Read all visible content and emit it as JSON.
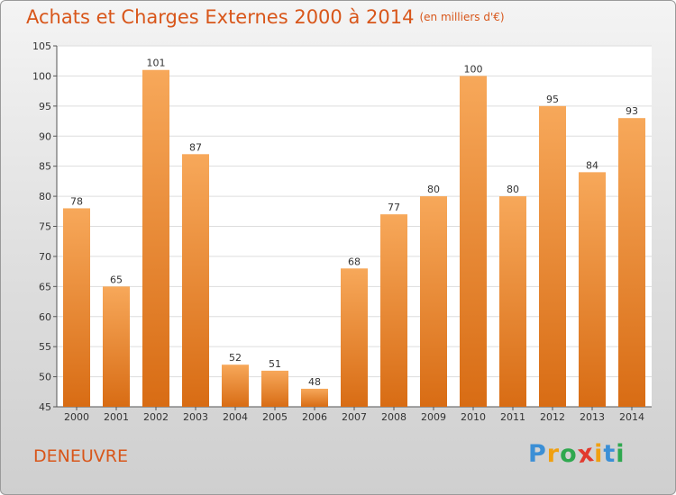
{
  "chart_data": {
    "type": "bar",
    "title": "Achats et Charges Externes 2000 à 2014",
    "unit_label": "(en milliers d'€)",
    "categories": [
      "2000",
      "2001",
      "2002",
      "2003",
      "2004",
      "2005",
      "2006",
      "2007",
      "2008",
      "2009",
      "2010",
      "2011",
      "2012",
      "2013",
      "2014"
    ],
    "values": [
      78,
      65,
      101,
      87,
      52,
      51,
      48,
      68,
      77,
      80,
      100,
      80,
      95,
      84,
      93
    ],
    "ylim": [
      45,
      105
    ],
    "yticks": [
      45,
      50,
      55,
      60,
      65,
      70,
      75,
      80,
      85,
      90,
      95,
      100,
      105
    ],
    "grid": true,
    "bar_color_top": "#f7a85a",
    "bar_color_bottom": "#d86c14"
  },
  "location": "DENEUVRE",
  "logo": {
    "letters": [
      "P",
      "r",
      "o",
      "x",
      "i",
      "t",
      "i"
    ],
    "colors": [
      "#3b8fd6",
      "#f0a010",
      "#2fa84f",
      "#e23a2e",
      "#f0a010",
      "#3b8fd6",
      "#2fa84f"
    ]
  }
}
